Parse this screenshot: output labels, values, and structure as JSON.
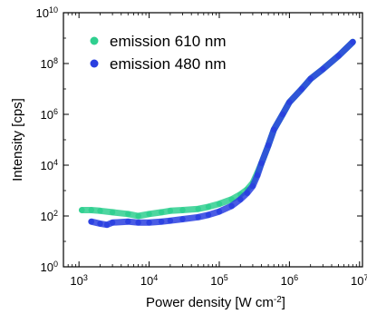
{
  "chart_data": {
    "type": "scatter",
    "xlabel": {
      "base": "Power density [W cm",
      "sup": "-2",
      "tail": "]"
    },
    "ylabel": "Intensity [cps]",
    "xscale": "log",
    "yscale": "log",
    "xlim": [
      600,
      11000000
    ],
    "ylim": [
      1,
      10000000000
    ],
    "x_ticks": [
      {
        "value": 1000,
        "base": "10",
        "exp": "3"
      },
      {
        "value": 10000,
        "base": "10",
        "exp": "4"
      },
      {
        "value": 100000,
        "base": "10",
        "exp": "5"
      },
      {
        "value": 1000000,
        "base": "10",
        "exp": "6"
      },
      {
        "value": 10000000,
        "base": "10",
        "exp": "7"
      }
    ],
    "y_ticks": [
      {
        "value": 1,
        "base": "10",
        "exp": "0"
      },
      {
        "value": 100,
        "base": "10",
        "exp": "2"
      },
      {
        "value": 10000,
        "base": "10",
        "exp": "4"
      },
      {
        "value": 1000000,
        "base": "10",
        "exp": "6"
      },
      {
        "value": 100000000,
        "base": "10",
        "exp": "8"
      },
      {
        "value": 10000000000,
        "base": "10",
        "exp": "10"
      }
    ],
    "grid": false,
    "legend_position": "top-left",
    "series": [
      {
        "name": "emission 610 nm",
        "color": "#2fcf8f",
        "points": [
          [
            1100,
            170
          ],
          [
            1500,
            170
          ],
          [
            2000,
            160
          ],
          [
            3000,
            140
          ],
          [
            5000,
            120
          ],
          [
            7000,
            100
          ],
          [
            10000,
            120
          ],
          [
            15000,
            140
          ],
          [
            20000,
            160
          ],
          [
            30000,
            170
          ],
          [
            50000,
            190
          ],
          [
            70000,
            230
          ],
          [
            100000,
            300
          ],
          [
            150000,
            450
          ],
          [
            200000,
            700
          ],
          [
            250000,
            1100
          ],
          [
            300000,
            2000
          ],
          [
            350000,
            5000
          ],
          [
            400000,
            12000
          ],
          [
            500000,
            60000
          ],
          [
            600000,
            250000
          ],
          [
            800000,
            1000000
          ],
          [
            1000000,
            3000000
          ],
          [
            1500000,
            10000000
          ],
          [
            2000000,
            25000000
          ],
          [
            3000000,
            60000000
          ],
          [
            5000000,
            200000000
          ],
          [
            8000000,
            700000000
          ]
        ]
      },
      {
        "name": "emission 480 nm",
        "color": "#2a3fe0",
        "points": [
          [
            1500,
            60
          ],
          [
            2000,
            50
          ],
          [
            2500,
            45
          ],
          [
            3000,
            55
          ],
          [
            5000,
            60
          ],
          [
            7000,
            55
          ],
          [
            10000,
            55
          ],
          [
            15000,
            60
          ],
          [
            20000,
            65
          ],
          [
            30000,
            75
          ],
          [
            50000,
            90
          ],
          [
            70000,
            110
          ],
          [
            100000,
            150
          ],
          [
            150000,
            250
          ],
          [
            200000,
            450
          ],
          [
            250000,
            800
          ],
          [
            300000,
            1500
          ],
          [
            350000,
            4000
          ],
          [
            400000,
            12000
          ],
          [
            500000,
            60000
          ],
          [
            600000,
            250000
          ],
          [
            800000,
            1000000
          ],
          [
            1000000,
            3000000
          ],
          [
            1500000,
            10000000
          ],
          [
            2000000,
            25000000
          ],
          [
            3000000,
            60000000
          ],
          [
            5000000,
            200000000
          ],
          [
            8000000,
            700000000
          ]
        ]
      }
    ]
  }
}
